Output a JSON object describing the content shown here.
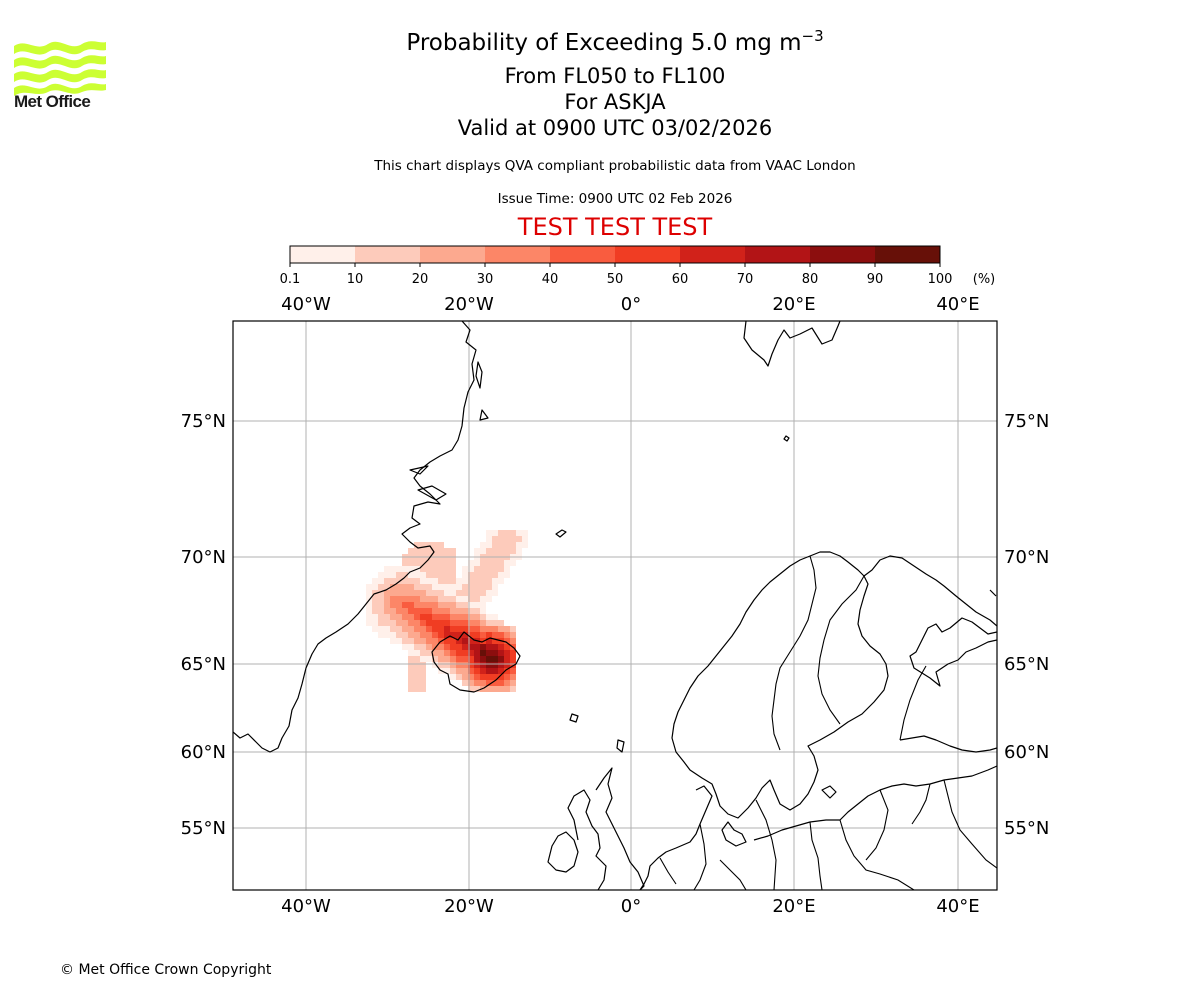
{
  "header": {
    "title_main": "Probability of Exceeding 5.0 mg m",
    "title_exponent": "−3",
    "level_range": "From FL050 to FL100",
    "volcano": "For ASKJA",
    "valid_time": "Valid at 0900 UTC 03/02/2026",
    "description": "This chart displays QVA compliant probabilistic data from VAAC London",
    "issue_time": "Issue Time: 0900 UTC 02 Feb 2026",
    "test_banner": "TEST TEST TEST",
    "test_banner_color": "#dd0000"
  },
  "logo": {
    "text": "Met Office",
    "color": "#ccff33"
  },
  "colorbar": {
    "unit_label": "(%)",
    "ticks": [
      "0.1",
      "10",
      "20",
      "30",
      "40",
      "50",
      "60",
      "70",
      "80",
      "90",
      "100"
    ],
    "colors": [
      "#fff0ea",
      "#fdcbbb",
      "#fca98f",
      "#fc8667",
      "#f95c3f",
      "#f03d23",
      "#d1221a",
      "#b21416",
      "#8c0e0e",
      "#671008"
    ]
  },
  "map": {
    "lon_labels": [
      "40°W",
      "20°W",
      "0°",
      "20°E",
      "40°E"
    ],
    "lat_labels": [
      "75°N",
      "70°N",
      "65°N",
      "60°N",
      "55°N"
    ]
  },
  "footer": {
    "copyright": "© Met Office Crown Copyright"
  }
}
